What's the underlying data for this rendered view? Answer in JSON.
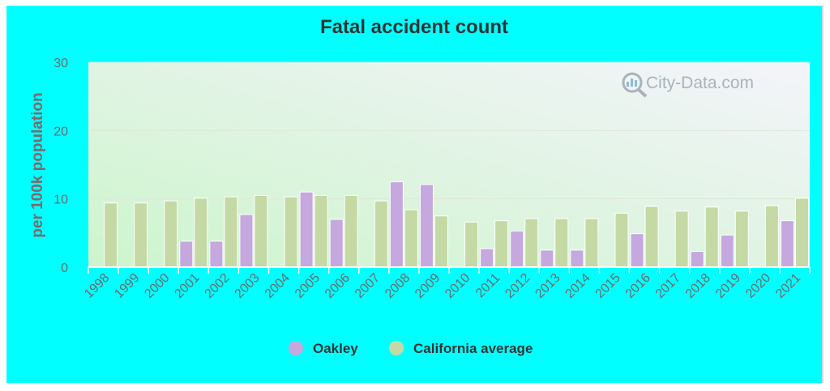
{
  "chart_data": {
    "type": "bar",
    "title": "Fatal accident count",
    "ylabel": "per 100k population",
    "xlabel": "",
    "ylim": [
      0,
      30
    ],
    "yticks": [
      0,
      10,
      20,
      30
    ],
    "grid": true,
    "legend_position": "bottom-center",
    "categories": [
      "1998",
      "1999",
      "2000",
      "2001",
      "2002",
      "2003",
      "2004",
      "2005",
      "2006",
      "2007",
      "2008",
      "2009",
      "2010",
      "2011",
      "2012",
      "2013",
      "2014",
      "2015",
      "2016",
      "2017",
      "2018",
      "2019",
      "2020",
      "2021"
    ],
    "series": [
      {
        "name": "Oakley",
        "color": "#c4a8de",
        "values": [
          null,
          null,
          null,
          3.8,
          3.8,
          7.7,
          null,
          11.0,
          7.0,
          null,
          12.5,
          12.1,
          null,
          2.7,
          5.3,
          2.5,
          2.5,
          null,
          4.9,
          null,
          2.3,
          4.7,
          null,
          6.8
        ]
      },
      {
        "name": "California average",
        "color": "#c5d9a5",
        "values": [
          9.4,
          9.4,
          9.7,
          10.1,
          10.3,
          10.5,
          10.3,
          10.5,
          10.5,
          9.7,
          8.4,
          7.5,
          6.6,
          6.8,
          7.1,
          7.1,
          7.1,
          7.9,
          8.9,
          8.2,
          8.8,
          8.2,
          9.0,
          10.1
        ]
      }
    ]
  },
  "watermark": {
    "text": "City-Data.com",
    "icon": "magnifier-chart-icon"
  },
  "colors": {
    "background": "#00ffff",
    "plot_gradient_start": "#ccf5cc",
    "plot_gradient_end": "#f4f4fa"
  }
}
